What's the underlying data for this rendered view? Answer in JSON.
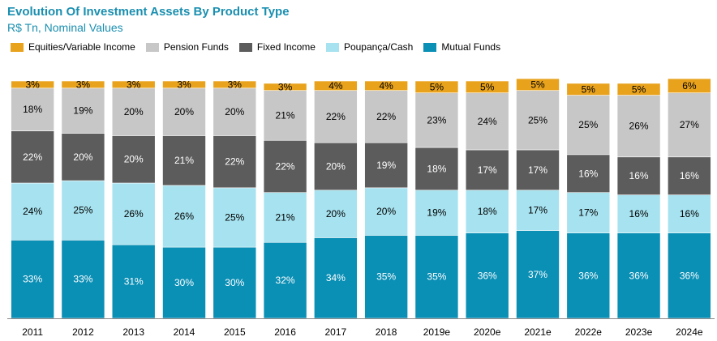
{
  "chart_data": {
    "type": "bar",
    "stacked": true,
    "title": "Evolution Of Investment Assets By Product Type",
    "subtitle": "R$ Tn, Nominal Values",
    "categories": [
      "2011",
      "2012",
      "2013",
      "2014",
      "2015",
      "2016",
      "2017",
      "2018",
      "2019e",
      "2020e",
      "2021e",
      "2022e",
      "2023e",
      "2024e"
    ],
    "series": [
      {
        "name": "Mutual Funds",
        "color": "#0a8fb5",
        "label_color": "#ffffff",
        "values": [
          33,
          33,
          31,
          30,
          30,
          32,
          34,
          35,
          35,
          36,
          37,
          36,
          36,
          36
        ],
        "labels": [
          "33%",
          "33%",
          "31%",
          "30%",
          "30%",
          "32%",
          "34%",
          "35%",
          "35%",
          "36%",
          "37%",
          "36%",
          "36%",
          "36%"
        ]
      },
      {
        "name": "Poupança/Cash",
        "color": "#a6e2ef",
        "label_color": "#000000",
        "values": [
          24,
          25,
          26,
          26,
          25,
          21,
          20,
          20,
          19,
          18,
          17,
          17,
          16,
          16
        ],
        "labels": [
          "24%",
          "25%",
          "26%",
          "26%",
          "25%",
          "21%",
          "20%",
          "20%",
          "19%",
          "18%",
          "17%",
          "17%",
          "16%",
          "16%"
        ]
      },
      {
        "name": "Fixed Income",
        "color": "#5c5c5c",
        "label_color": "#ffffff",
        "values": [
          22,
          20,
          20,
          21,
          22,
          22,
          20,
          19,
          18,
          17,
          17,
          16,
          16,
          16
        ],
        "labels": [
          "22%",
          "20%",
          "20%",
          "21%",
          "22%",
          "22%",
          "20%",
          "19%",
          "18%",
          "17%",
          "17%",
          "16%",
          "16%",
          "16%"
        ]
      },
      {
        "name": "Pension Funds",
        "color": "#c7c7c7",
        "label_color": "#000000",
        "values": [
          18,
          19,
          20,
          20,
          20,
          21,
          22,
          22,
          23,
          24,
          25,
          25,
          26,
          27
        ],
        "labels": [
          "18%",
          "19%",
          "20%",
          "20%",
          "20%",
          "21%",
          "22%",
          "22%",
          "23%",
          "24%",
          "25%",
          "25%",
          "26%",
          "27%"
        ]
      },
      {
        "name": "Equities/Variable Income",
        "color": "#e8a21c",
        "label_color": "#000000",
        "values": [
          3,
          3,
          3,
          3,
          3,
          3,
          4,
          4,
          5,
          5,
          5,
          5,
          5,
          6
        ],
        "labels": [
          "3%",
          "3%",
          "3%",
          "3%",
          "3%",
          "3%",
          "4%",
          "4%",
          "5%",
          "5%",
          "5%",
          "5%",
          "5%",
          "6%"
        ]
      }
    ],
    "totals_pct": [
      100,
      100,
      100,
      100,
      100,
      99,
      100,
      100,
      100,
      100,
      101,
      99,
      99,
      101
    ],
    "legend_order": [
      "Equities/Variable Income",
      "Pension Funds",
      "Fixed Income",
      "Poupança/Cash",
      "Mutual Funds"
    ],
    "legend_position": "top-left",
    "xlabel": "",
    "ylabel": "",
    "ylim": [
      0,
      100
    ],
    "grid": false
  }
}
